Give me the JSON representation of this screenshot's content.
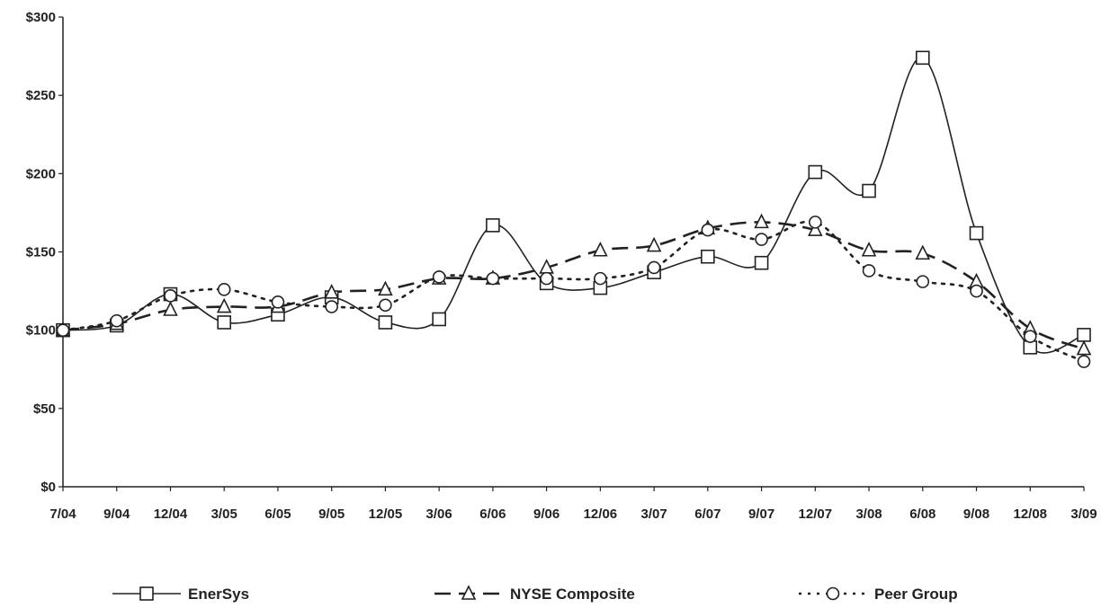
{
  "chart_data": {
    "type": "line",
    "title": "",
    "xlabel": "",
    "ylabel": "",
    "categories": [
      "7/04",
      "9/04",
      "12/04",
      "3/05",
      "6/05",
      "9/05",
      "12/05",
      "3/06",
      "6/06",
      "9/06",
      "12/06",
      "3/07",
      "6/07",
      "9/07",
      "12/07",
      "3/08",
      "6/08",
      "9/08",
      "12/08",
      "3/09"
    ],
    "y_ticks": [
      "$0",
      "$50",
      "$100",
      "$150",
      "$200",
      "$250",
      "$300"
    ],
    "y_tick_values": [
      0,
      50,
      100,
      150,
      200,
      250,
      300
    ],
    "ylim": [
      0,
      300
    ],
    "grid": false,
    "legend_position": "bottom",
    "series": [
      {
        "name": "EnerSys",
        "marker": "square",
        "line_style": "solid",
        "color": "#222222",
        "values": [
          100,
          103,
          123,
          105,
          110,
          121,
          105,
          107,
          167,
          130,
          127,
          137,
          147,
          143,
          201,
          189,
          274,
          162,
          89,
          97
        ]
      },
      {
        "name": "NYSE Composite",
        "marker": "triangle",
        "line_style": "dashed",
        "color": "#222222",
        "values": [
          100,
          104,
          113,
          115,
          115,
          124,
          126,
          133,
          133,
          140,
          151,
          154,
          165,
          169,
          164,
          151,
          149,
          131,
          101,
          88
        ]
      },
      {
        "name": "Peer Group",
        "marker": "circle",
        "line_style": "dotted",
        "color": "#222222",
        "values": [
          100,
          106,
          122,
          126,
          118,
          115,
          116,
          134,
          133,
          133,
          133,
          140,
          164,
          158,
          169,
          138,
          131,
          125,
          96,
          80
        ]
      }
    ]
  }
}
